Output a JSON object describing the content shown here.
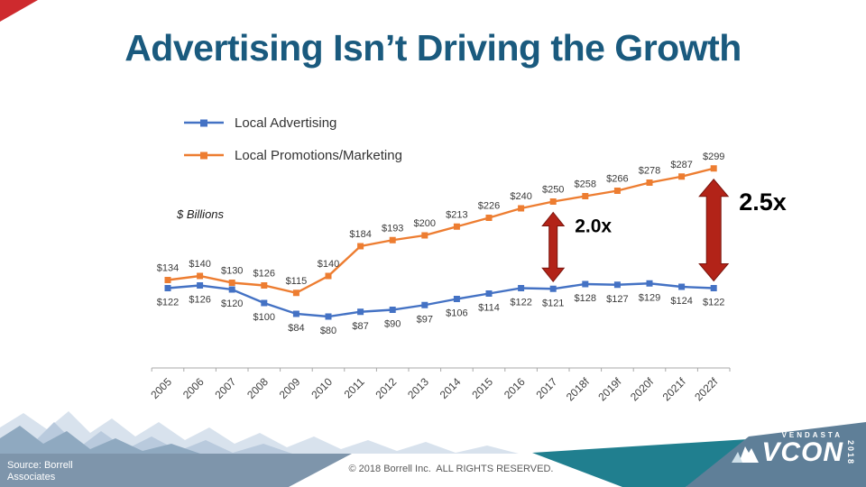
{
  "slide": {
    "title": "Advertising Isn’t Driving the Growth",
    "title_color": "#1A5A7E",
    "units_label": "$ Billions",
    "source_line1": "Source:  Borrell",
    "source_line2": "Associates",
    "copyright": "© 2018 Borrell Inc.  ALL RIGHTS RESERVED.",
    "logo": {
      "brand": "VENDASTA",
      "mark": "VCON",
      "year": "2018"
    }
  },
  "legend": [
    {
      "label": "Local Advertising",
      "color": "#4472C4"
    },
    {
      "label": "Local Promotions/Marketing",
      "color": "#ED7D31"
    }
  ],
  "chart_data": {
    "type": "line",
    "x": [
      "2005",
      "2006",
      "2007",
      "2008",
      "2009",
      "2010",
      "2011",
      "2012",
      "2013",
      "2014",
      "2015",
      "2016",
      "2017",
      "2018f",
      "2019f",
      "2020f",
      "2021f",
      "2022f"
    ],
    "series": [
      {
        "name": "Local Advertising",
        "color": "#4472C4",
        "label_position": "below",
        "values": [
          122,
          126,
          120,
          100,
          84,
          80,
          87,
          90,
          97,
          106,
          114,
          122,
          121,
          128,
          127,
          129,
          124,
          122
        ]
      },
      {
        "name": "Local Promotions/Marketing",
        "color": "#ED7D31",
        "label_position": "above",
        "values": [
          134,
          140,
          130,
          126,
          115,
          140,
          184,
          193,
          200,
          213,
          226,
          240,
          250,
          258,
          266,
          278,
          287,
          299
        ]
      }
    ],
    "value_prefix": "$",
    "ylabel": "$ Billions",
    "xlabel": "",
    "ylim": [
      0,
      320
    ],
    "grid": false,
    "legend_position": "top-left",
    "marker": "square",
    "annotations": [
      {
        "x": "2017",
        "label": "2.0x"
      },
      {
        "x": "2022f",
        "label": "2.5x"
      }
    ],
    "annotation_arrow_color": "#B22318"
  }
}
